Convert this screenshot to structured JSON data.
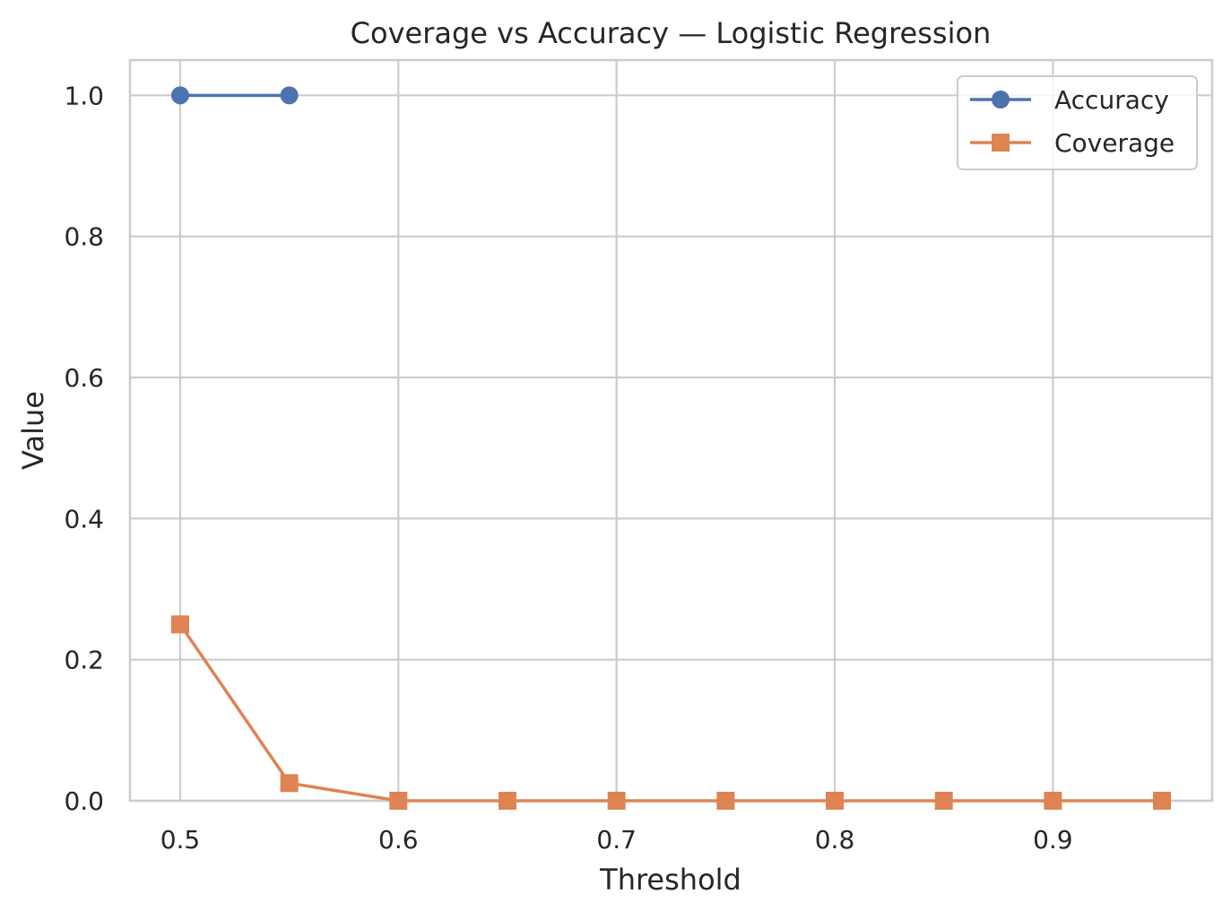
{
  "chart_data": {
    "type": "line",
    "title": "Coverage vs Accuracy — Logistic Regression",
    "xlabel": "Threshold",
    "ylabel": "Value",
    "xlim": [
      0.477,
      0.973
    ],
    "ylim": [
      0.0,
      1.05
    ],
    "x_ticks": [
      0.5,
      0.6,
      0.7,
      0.8,
      0.9
    ],
    "x_tick_labels": [
      "0.5",
      "0.6",
      "0.7",
      "0.8",
      "0.9"
    ],
    "y_ticks": [
      0.0,
      0.2,
      0.4,
      0.6,
      0.8,
      1.0
    ],
    "y_tick_labels": [
      "0.0",
      "0.2",
      "0.4",
      "0.6",
      "0.8",
      "1.0"
    ],
    "grid": true,
    "legend": "top-right",
    "series": [
      {
        "name": "Accuracy",
        "color": "#4c72b0",
        "marker": "circle",
        "x": [
          0.5,
          0.55
        ],
        "y": [
          1.0,
          1.0
        ]
      },
      {
        "name": "Coverage",
        "color": "#dd8452",
        "marker": "square",
        "x": [
          0.5,
          0.55,
          0.6,
          0.65,
          0.7,
          0.75,
          0.8,
          0.85,
          0.9,
          0.95
        ],
        "y": [
          0.25,
          0.025,
          0.0,
          0.0,
          0.0,
          0.0,
          0.0,
          0.0,
          0.0,
          0.0
        ]
      }
    ]
  }
}
